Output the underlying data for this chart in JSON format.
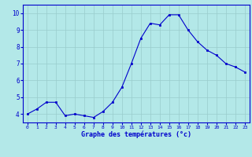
{
  "x": [
    0,
    1,
    2,
    3,
    4,
    5,
    6,
    7,
    8,
    9,
    10,
    11,
    12,
    13,
    14,
    15,
    16,
    17,
    18,
    19,
    20,
    21,
    22,
    23
  ],
  "y": [
    4.0,
    4.3,
    4.7,
    4.7,
    3.9,
    4.0,
    3.9,
    3.8,
    4.15,
    4.7,
    5.6,
    7.0,
    8.5,
    9.4,
    9.3,
    9.9,
    9.9,
    9.0,
    8.3,
    7.8,
    7.5,
    7.0,
    6.8,
    6.5
  ],
  "line_color": "#0000cc",
  "marker_color": "#0000cc",
  "bg_color": "#b3e8e8",
  "grid_color": "#99cccc",
  "axis_label_color": "#0000cc",
  "tick_color": "#0000cc",
  "border_color": "#0000cc",
  "xlabel": "Graphe des températures (°c)",
  "ylim": [
    3.5,
    10.5
  ],
  "xlim": [
    -0.5,
    23.5
  ],
  "yticks": [
    4,
    5,
    6,
    7,
    8,
    9,
    10
  ],
  "xticks": [
    0,
    1,
    2,
    3,
    4,
    5,
    6,
    7,
    8,
    9,
    10,
    11,
    12,
    13,
    14,
    15,
    16,
    17,
    18,
    19,
    20,
    21,
    22,
    23
  ]
}
